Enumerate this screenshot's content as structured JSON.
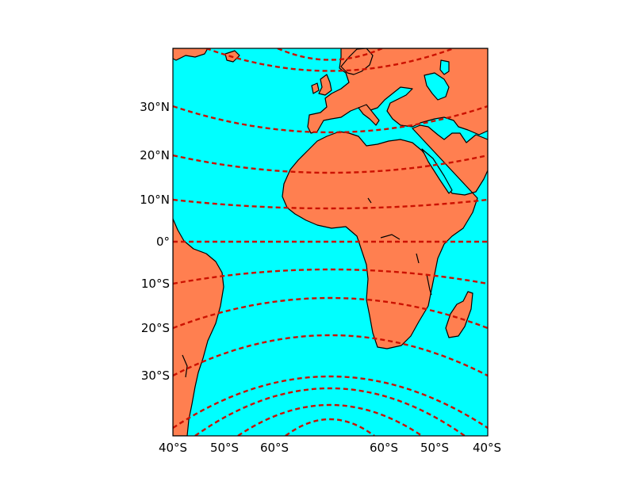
{
  "map": {
    "colors": {
      "ocean": "#00ffff",
      "land": "#ff7f50",
      "graticule": "#cc1100",
      "coast": "#000000"
    },
    "lat_labels": [
      {
        "text": "30°N",
        "lat": 30
      },
      {
        "text": "20°N",
        "lat": 20
      },
      {
        "text": "10°N",
        "lat": 10
      },
      {
        "text": "0°",
        "lat": 0
      },
      {
        "text": "10°S",
        "lat": -10
      },
      {
        "text": "20°S",
        "lat": -20
      },
      {
        "text": "30°S",
        "lat": -30
      }
    ],
    "bottom_labels": [
      "40°S",
      "50°S",
      "60°S",
      "60°S",
      "50°S",
      "40°S"
    ]
  }
}
